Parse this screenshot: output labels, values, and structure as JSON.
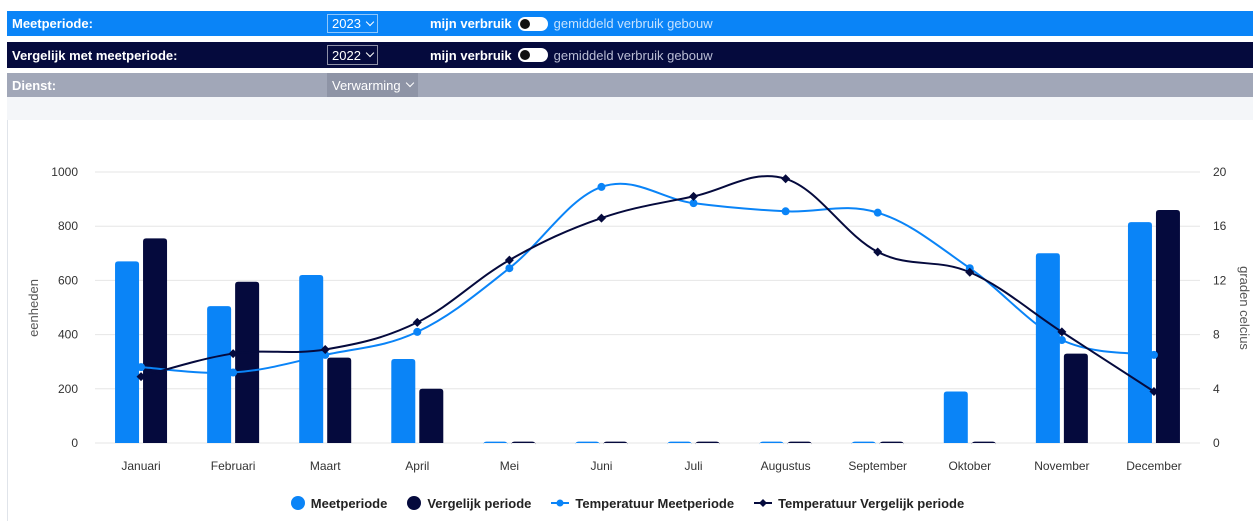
{
  "controls": {
    "measure_period": {
      "label": "Meetperiode:",
      "selected": "2023",
      "toggle_label": "mijn verbruik",
      "toggle_alt": "gemiddeld verbruik gebouw"
    },
    "compare_period": {
      "label": "Vergelijk met meetperiode:",
      "selected": "2022",
      "toggle_label": "mijn verbruik",
      "toggle_alt": "gemiddeld verbruik gebouw"
    },
    "service": {
      "label": "Dienst:",
      "selected": "Verwarming"
    }
  },
  "colors": {
    "measure": "#0a84f7",
    "compare": "#050a3d",
    "service_bar": "#a1a7b8",
    "grid": "#e6e6e6"
  },
  "chart_data": {
    "type": "bar",
    "title": "",
    "categories": [
      "Januari",
      "Februari",
      "Maart",
      "April",
      "Mei",
      "Juni",
      "Juli",
      "Augustus",
      "September",
      "Oktober",
      "November",
      "December"
    ],
    "ylabel": "eenheden",
    "y2label": "graden celcius",
    "ylim": [
      0,
      1000
    ],
    "y2lim": [
      0,
      20
    ],
    "yticks": [
      "0",
      "200",
      "400",
      "600",
      "800",
      "1000"
    ],
    "y2ticks": [
      "0",
      "4",
      "8",
      "12",
      "16",
      "20"
    ],
    "grid": true,
    "legend_position": "bottom-center",
    "series": [
      {
        "name": "Meetperiode",
        "type": "bar",
        "axis": "left",
        "color": "#0a84f7",
        "values": [
          670,
          505,
          620,
          310,
          5,
          5,
          5,
          5,
          5,
          190,
          700,
          815
        ]
      },
      {
        "name": "Vergelijk periode",
        "type": "bar",
        "axis": "left",
        "color": "#050a3d",
        "values": [
          755,
          595,
          315,
          200,
          5,
          5,
          5,
          5,
          5,
          5,
          330,
          860
        ]
      },
      {
        "name": "Temperatuur Meetperiode",
        "type": "line",
        "axis": "right",
        "marker": "circle",
        "color": "#0a84f7",
        "values": [
          5.6,
          5.2,
          6.5,
          8.2,
          12.9,
          18.9,
          17.7,
          17.1,
          17.0,
          12.9,
          7.6,
          6.5
        ]
      },
      {
        "name": "Temperatuur Vergelijk periode",
        "type": "line",
        "axis": "right",
        "marker": "diamond",
        "color": "#050a3d",
        "values": [
          4.9,
          6.6,
          6.9,
          8.9,
          13.5,
          16.6,
          18.2,
          19.5,
          14.1,
          12.6,
          8.2,
          3.8
        ]
      }
    ]
  }
}
